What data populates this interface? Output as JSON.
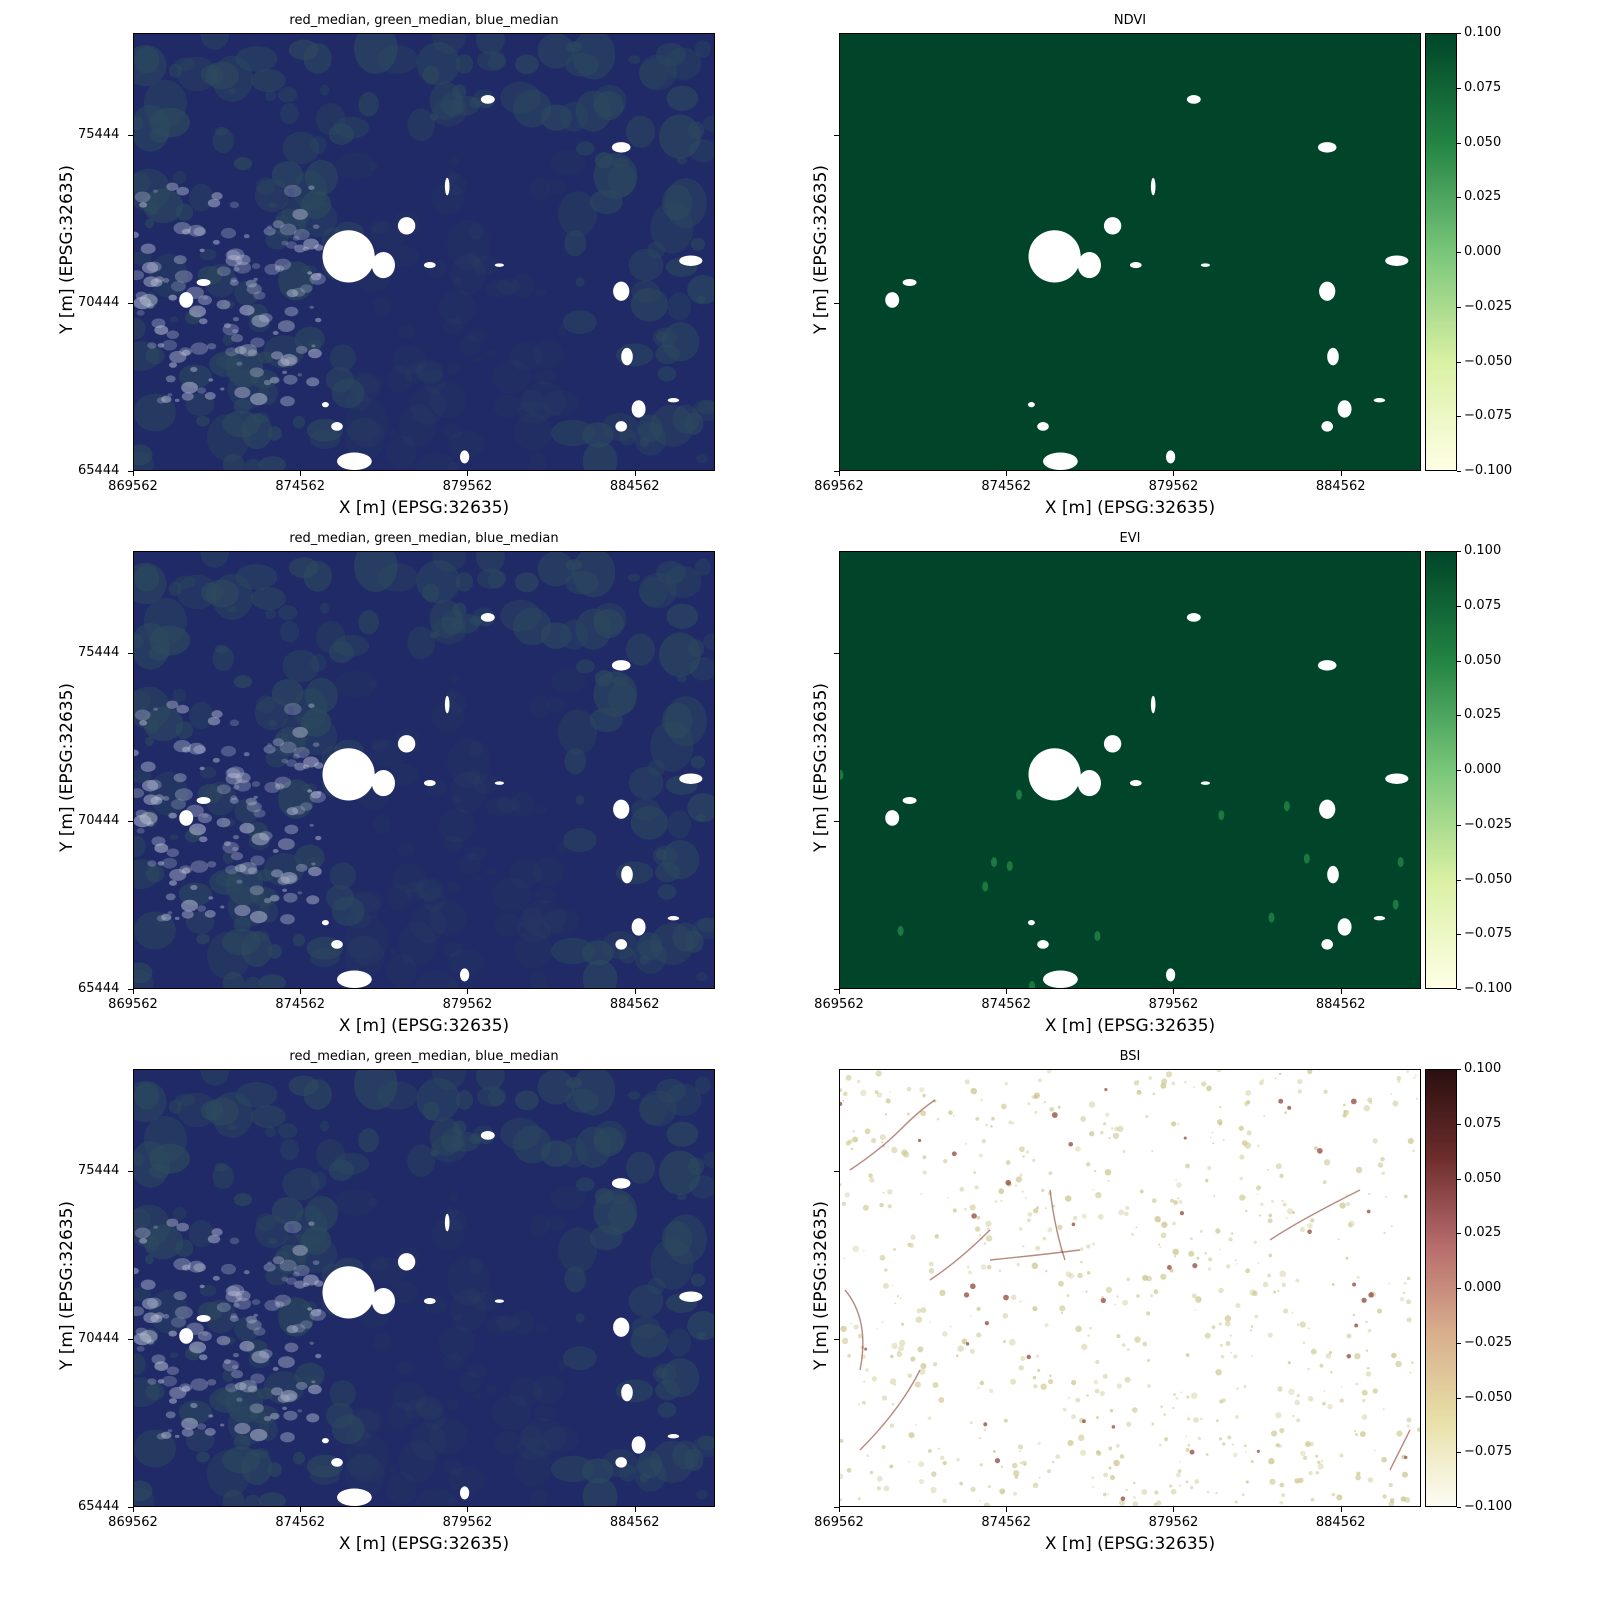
{
  "figure": {
    "x_axis_label": "X [m] (EPSG:32635)",
    "y_axis_label": "Y [m] (EPSG:32635)",
    "x_ticks": [
      "869562",
      "874562",
      "879562",
      "884562"
    ],
    "y_ticks": [
      "75444",
      "70444",
      "65444"
    ],
    "colorbar_ticks": [
      "0.100",
      "0.075",
      "0.050",
      "0.025",
      "0.000",
      "−0.025",
      "−0.050",
      "−0.075",
      "−0.100"
    ],
    "panels": [
      {
        "title": "red_median, green_median, blue_median",
        "kind": "rgb"
      },
      {
        "title": "NDVI",
        "kind": "ndvi",
        "colormap": [
          "#ffffe5",
          "#d9f0a3",
          "#78c679",
          "#238443",
          "#004529"
        ]
      },
      {
        "title": "red_median, green_median, blue_median",
        "kind": "rgb"
      },
      {
        "title": "EVI",
        "kind": "evi",
        "colormap": [
          "#ffffe5",
          "#d9f0a3",
          "#78c679",
          "#238443",
          "#004529"
        ]
      },
      {
        "title": "red_median, green_median, blue_median",
        "kind": "rgb"
      },
      {
        "title": "BSI",
        "kind": "bsi",
        "colormap": [
          "#fcfcf4",
          "#e7dfa6",
          "#d8ad8c",
          "#b66b6b",
          "#6d2c2c",
          "#2b0f0f"
        ]
      }
    ],
    "colors": {
      "rgb_base": "#1f2a66",
      "rgb_veg": "#2d4a5e",
      "rgb_haze": "#b9bfd6",
      "index_fill": "#004529",
      "nodata": "#ffffff",
      "bsi_speck": "#c9c48a",
      "bsi_line": "#8a3a2a"
    }
  }
}
